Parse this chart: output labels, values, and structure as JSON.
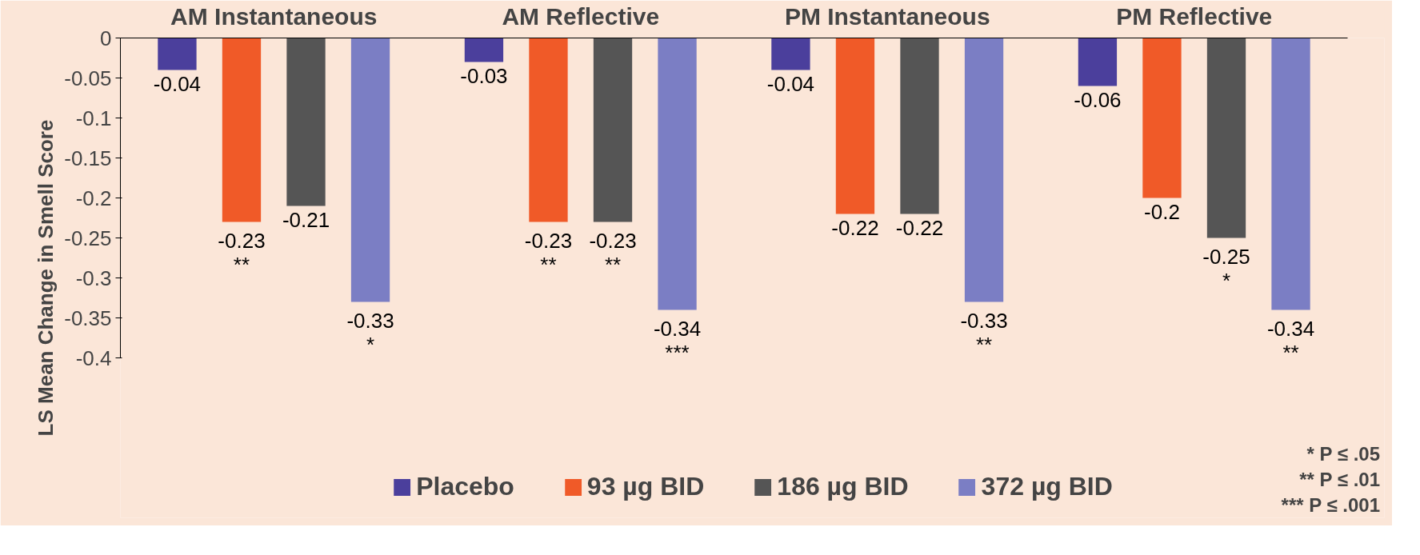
{
  "chart_data": {
    "type": "bar",
    "ylabel": "LS Mean Change in Smell Score",
    "categories": [
      "AM Instantaneous",
      "AM Reflective",
      "PM Instantaneous",
      "PM Reflective"
    ],
    "series": [
      {
        "name": "Placebo",
        "color": "#4b3f9c",
        "values": [
          -0.04,
          -0.03,
          -0.04,
          -0.06
        ],
        "value_labels": [
          "-0.04",
          "-0.03",
          "-0.04",
          "-0.06"
        ]
      },
      {
        "name": "93 µg BID",
        "color": "#f05a28",
        "values": [
          -0.23,
          -0.23,
          -0.22,
          -0.2
        ],
        "value_labels": [
          "-0.23\n**",
          "-0.23\n**",
          "-0.22",
          "-0.2"
        ]
      },
      {
        "name": "186 µg BID",
        "color": "#555555",
        "values": [
          -0.21,
          -0.23,
          -0.22,
          -0.25
        ],
        "value_labels": [
          "-0.21",
          "-0.23\n**",
          "-0.22",
          "-0.25\n*"
        ]
      },
      {
        "name": "372 µg BID",
        "color": "#7b7ec4",
        "values": [
          -0.33,
          -0.34,
          -0.33,
          -0.34
        ],
        "value_labels": [
          "-0.33\n*",
          "-0.34\n***",
          "-0.33\n**",
          "-0.34\n**"
        ]
      }
    ],
    "ylim": [
      -0.4,
      0
    ],
    "yticks": [
      0,
      -0.05,
      -0.1,
      -0.15,
      -0.2,
      -0.25,
      -0.3,
      -0.35,
      -0.4
    ],
    "grid": false,
    "legend": "bottom",
    "annotations": [
      "* P ≤ .05",
      "** P ≤ .01",
      "*** P ≤ .001"
    ]
  }
}
